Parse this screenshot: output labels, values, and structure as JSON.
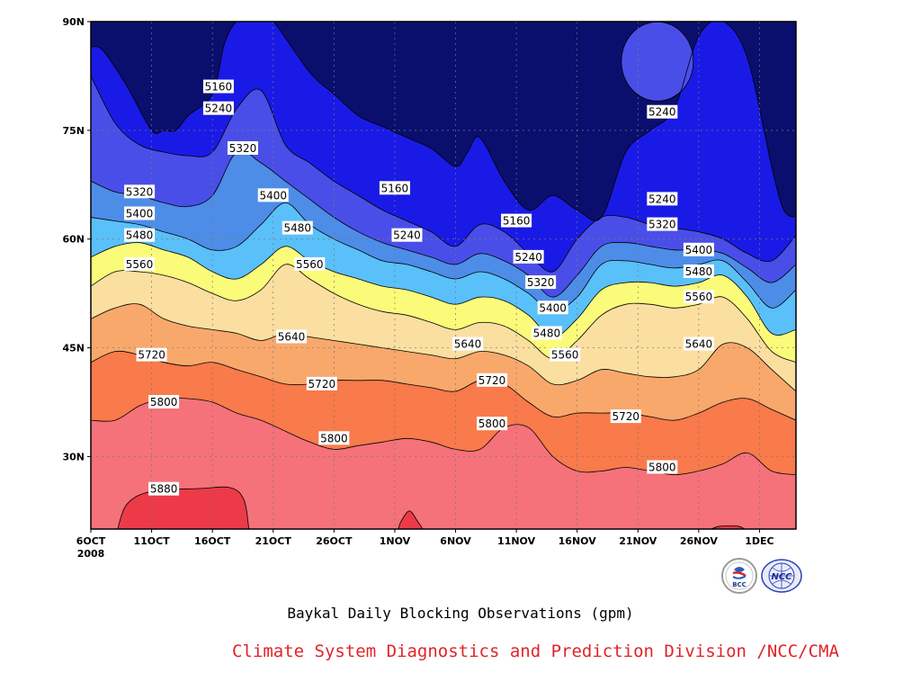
{
  "chart_data": {
    "type": "heatmap",
    "subtype": "filled-contour",
    "title": "Baykal Daily Blocking Observations (gpm)",
    "credit": "Climate System Diagnostics and Prediction Division /NCC/CMA",
    "logos": [
      "BCC",
      "NCC"
    ],
    "x_ticks": [
      "6OCT",
      "11OCT",
      "16OCT",
      "21OCT",
      "26OCT",
      "1NOV",
      "6NOV",
      "11NOV",
      "16NOV",
      "21NOV",
      "26NOV",
      "1DEC"
    ],
    "x_year_label": "2008",
    "y_ticks": [
      "30N",
      "45N",
      "60N",
      "75N",
      "90N"
    ],
    "ylim": [
      20,
      90
    ],
    "xlim_days": [
      0,
      58
    ],
    "grid": true,
    "contour_levels": [
      5160,
      5240,
      5320,
      5400,
      5480,
      5560,
      5640,
      5720,
      5800,
      5880
    ],
    "band_colors": [
      "#0a0f6e",
      "#1a1ae6",
      "#4a4ee8",
      "#4d8de8",
      "#5ac0fa",
      "#fbfb7a",
      "#fbdfa0",
      "#f9a86c",
      "#f97a4a",
      "#f5727a",
      "#ec3a48"
    ],
    "contours": [
      {
        "level": 5160,
        "days": [
          0,
          1,
          3,
          5,
          6,
          7,
          8,
          10,
          11,
          12,
          13,
          14,
          15,
          18,
          20,
          22,
          24,
          26,
          28,
          30,
          31,
          32,
          34,
          36,
          38,
          40,
          42,
          44,
          46,
          48,
          50,
          52,
          54,
          56,
          57,
          58
        ],
        "lat": [
          86.5,
          86,
          81,
          75,
          75,
          75,
          77,
          80,
          87,
          90,
          90,
          90,
          90,
          83,
          80,
          77,
          75.5,
          74,
          72.5,
          70,
          72,
          74,
          68,
          64,
          66,
          64,
          63,
          72,
          75,
          78,
          88,
          90,
          85,
          70,
          64,
          63
        ]
      },
      {
        "level": 5240,
        "days": [
          0,
          2,
          4,
          6,
          8,
          10,
          12,
          14,
          16,
          18,
          20,
          22,
          24,
          26,
          28,
          30,
          32,
          34,
          36,
          38,
          40,
          42,
          44,
          46,
          48,
          50,
          52,
          54,
          56,
          58
        ],
        "lat": [
          82.5,
          76,
          73,
          72,
          71.5,
          72,
          78,
          80.5,
          73,
          70.5,
          68,
          66,
          64,
          62.5,
          61,
          59,
          62,
          61,
          58,
          55.5,
          60,
          63,
          63,
          62,
          61.5,
          61,
          60,
          58,
          57,
          60.5
        ]
      },
      {
        "level": 5320,
        "days": [
          0,
          2,
          4,
          6,
          8,
          10,
          12,
          14,
          16,
          18,
          20,
          22,
          24,
          26,
          28,
          30,
          32,
          34,
          36,
          38,
          40,
          42,
          44,
          46,
          48,
          50,
          52,
          54,
          56,
          58
        ],
        "lat": [
          68,
          66.5,
          66,
          65,
          64.5,
          66,
          72,
          70.5,
          68,
          65.5,
          63,
          61,
          59.5,
          58.5,
          57.5,
          56.5,
          58,
          57,
          55,
          52,
          55,
          59,
          59.5,
          59,
          58.5,
          58.5,
          58,
          56,
          54,
          56.5
        ]
      },
      {
        "level": 5400,
        "days": [
          0,
          2,
          4,
          6,
          8,
          10,
          12,
          14,
          16,
          18,
          20,
          22,
          24,
          26,
          28,
          30,
          32,
          34,
          36,
          38,
          40,
          42,
          44,
          46,
          48,
          50,
          52,
          54,
          56,
          58
        ],
        "lat": [
          63,
          62.5,
          62,
          61,
          60,
          58.5,
          59,
          62,
          65,
          62,
          60,
          58.5,
          57,
          56.5,
          55.5,
          54.5,
          55.5,
          54.5,
          52.5,
          50,
          52,
          56.5,
          57,
          56.5,
          56,
          56.5,
          57,
          54,
          50.5,
          53
        ]
      },
      {
        "level": 5480,
        "days": [
          0,
          2,
          4,
          6,
          8,
          10,
          12,
          14,
          16,
          18,
          20,
          22,
          24,
          26,
          28,
          30,
          32,
          34,
          36,
          38,
          40,
          42,
          44,
          46,
          48,
          50,
          52,
          54,
          56,
          58
        ],
        "lat": [
          57.5,
          59,
          59.5,
          58.5,
          57.5,
          55.5,
          54.5,
          56.5,
          59,
          57,
          55.5,
          54.5,
          53.5,
          53,
          52,
          51,
          52,
          51.5,
          49.5,
          46.5,
          49,
          53,
          54,
          54,
          53.5,
          54,
          55,
          52,
          47,
          47.5
        ]
      },
      {
        "level": 5560,
        "days": [
          0,
          2,
          4,
          6,
          8,
          10,
          12,
          14,
          16,
          18,
          20,
          22,
          24,
          26,
          28,
          30,
          32,
          34,
          36,
          38,
          40,
          42,
          44,
          46,
          48,
          50,
          52,
          54,
          56,
          58
        ],
        "lat": [
          53.5,
          55.5,
          55.5,
          55,
          54,
          52.5,
          51.5,
          53,
          56.5,
          54.5,
          52.5,
          51,
          50,
          49.5,
          48.5,
          47.5,
          48.5,
          48,
          46,
          43.5,
          46,
          49.5,
          51,
          51,
          50.5,
          51,
          52,
          49,
          44.5,
          43
        ]
      },
      {
        "level": 5640,
        "days": [
          0,
          2,
          4,
          6,
          8,
          10,
          12,
          14,
          16,
          18,
          20,
          22,
          24,
          26,
          28,
          30,
          32,
          34,
          36,
          38,
          40,
          42,
          44,
          46,
          48,
          50,
          52,
          54,
          56,
          58
        ],
        "lat": [
          49,
          50.5,
          51,
          49,
          48,
          47.5,
          47,
          46,
          47,
          46.5,
          46,
          45.5,
          45,
          44.5,
          44,
          43.5,
          44.5,
          44,
          42.5,
          40,
          40.5,
          42,
          41.5,
          41,
          41,
          42,
          45.5,
          45,
          42,
          39
        ]
      },
      {
        "level": 5720,
        "days": [
          0,
          2,
          4,
          6,
          8,
          10,
          12,
          14,
          16,
          18,
          20,
          22,
          24,
          26,
          28,
          30,
          32,
          34,
          36,
          38,
          40,
          42,
          44,
          46,
          48,
          50,
          52,
          54,
          56,
          58
        ],
        "lat": [
          43,
          44.5,
          44,
          43,
          42.5,
          43,
          42,
          41,
          40,
          40,
          40.5,
          40.5,
          40.5,
          40,
          39.5,
          39,
          40.5,
          40,
          37.5,
          35.5,
          36,
          36,
          36,
          35.5,
          35,
          36,
          37.5,
          38,
          36.5,
          35
        ]
      },
      {
        "level": 5800,
        "days": [
          0,
          2,
          4,
          6,
          8,
          10,
          12,
          14,
          16,
          18,
          20,
          22,
          24,
          26,
          28,
          30,
          32,
          34,
          36,
          38,
          40,
          42,
          44,
          46,
          48,
          50,
          52,
          54,
          56,
          58
        ],
        "lat": [
          35,
          35,
          37,
          38,
          38,
          37.5,
          36,
          35,
          33.5,
          32,
          31,
          31.5,
          32,
          32.5,
          32,
          31,
          31,
          34,
          34,
          30,
          28,
          28,
          28.5,
          28,
          27.5,
          28,
          29,
          30.5,
          28,
          27.5
        ]
      }
    ],
    "local_features": [
      {
        "label": "5240",
        "note": "closed low near 21NOV, 80-88N"
      },
      {
        "label": "5880",
        "note": "high core 8OCT-17OCT south of 25N"
      },
      {
        "label": "5880",
        "note": "small core near 1NOV at 20-22N"
      },
      {
        "label": "5880",
        "note": "small core near 26NOV at 20N"
      }
    ],
    "contour_labels": [
      {
        "text": "5160",
        "day": 10.5,
        "lat": 81
      },
      {
        "text": "5240",
        "day": 10.5,
        "lat": 78
      },
      {
        "text": "5320",
        "day": 12.5,
        "lat": 72.5
      },
      {
        "text": "5400",
        "day": 15,
        "lat": 66
      },
      {
        "text": "5480",
        "day": 17,
        "lat": 61.5
      },
      {
        "text": "5560",
        "day": 18,
        "lat": 56.5
      },
      {
        "text": "5640",
        "day": 16.5,
        "lat": 46.5
      },
      {
        "text": "5720",
        "day": 19,
        "lat": 40
      },
      {
        "text": "5800",
        "day": 20,
        "lat": 32.5
      },
      {
        "text": "5320",
        "day": 4,
        "lat": 66.5
      },
      {
        "text": "5400",
        "day": 4,
        "lat": 63.5
      },
      {
        "text": "5480",
        "day": 4,
        "lat": 60.5
      },
      {
        "text": "5560",
        "day": 4,
        "lat": 56.5
      },
      {
        "text": "5720",
        "day": 5,
        "lat": 44
      },
      {
        "text": "5800",
        "day": 6,
        "lat": 37.5
      },
      {
        "text": "5880",
        "day": 6,
        "lat": 25.5
      },
      {
        "text": "5160",
        "day": 25,
        "lat": 67
      },
      {
        "text": "5240",
        "day": 26,
        "lat": 60.5
      },
      {
        "text": "5640",
        "day": 31,
        "lat": 45.5
      },
      {
        "text": "5720",
        "day": 33,
        "lat": 40.5
      },
      {
        "text": "5800",
        "day": 33,
        "lat": 34.5
      },
      {
        "text": "5160",
        "day": 35,
        "lat": 62.5
      },
      {
        "text": "5240",
        "day": 36,
        "lat": 57.5
      },
      {
        "text": "5320",
        "day": 37,
        "lat": 54
      },
      {
        "text": "5400",
        "day": 38,
        "lat": 50.5
      },
      {
        "text": "5480",
        "day": 37.5,
        "lat": 47
      },
      {
        "text": "5560",
        "day": 39,
        "lat": 44
      },
      {
        "text": "5240",
        "day": 47,
        "lat": 77.5
      },
      {
        "text": "5240",
        "day": 47,
        "lat": 65.5
      },
      {
        "text": "5320",
        "day": 47,
        "lat": 62
      },
      {
        "text": "5400",
        "day": 50,
        "lat": 58.5
      },
      {
        "text": "5480",
        "day": 50,
        "lat": 55.5
      },
      {
        "text": "5560",
        "day": 50,
        "lat": 52
      },
      {
        "text": "5640",
        "day": 50,
        "lat": 45.5
      },
      {
        "text": "5720",
        "day": 44,
        "lat": 35.5
      },
      {
        "text": "5800",
        "day": 47,
        "lat": 28.5
      }
    ]
  }
}
